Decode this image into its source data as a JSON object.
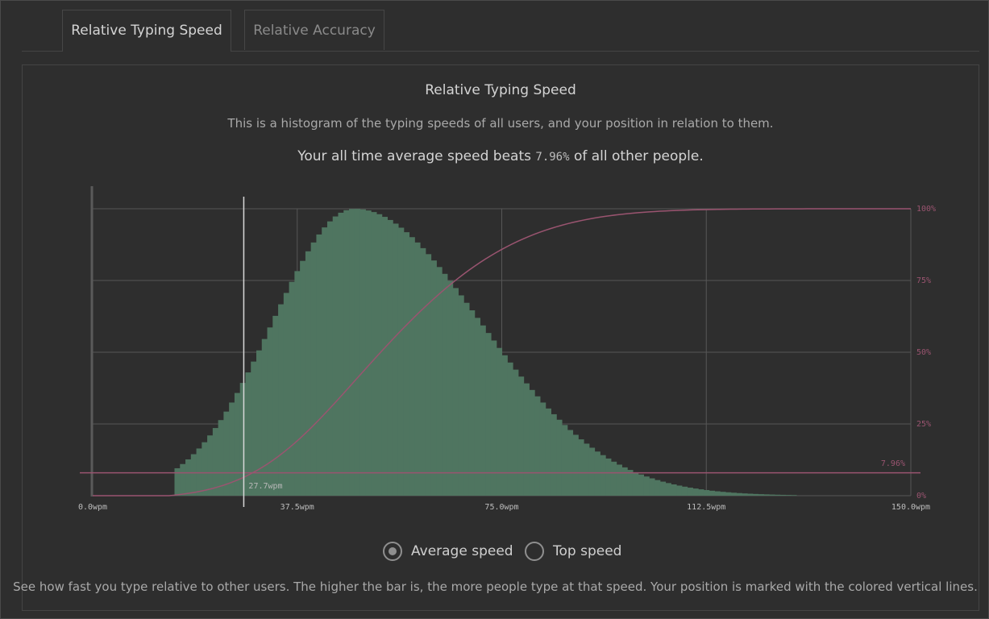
{
  "tabs": [
    {
      "label": "Relative Typing Speed",
      "active": true
    },
    {
      "label": "Relative Accuracy",
      "active": false
    }
  ],
  "panel": {
    "title": "Relative Typing Speed",
    "subtitle": "This is a histogram of the typing speeds of all users, and your position in relation to them.",
    "stat_prefix": "Your all time average speed beats",
    "stat_value": "7.96%",
    "stat_suffix": "of all other people."
  },
  "chart_data": {
    "type": "bar",
    "x_ticks": [
      "0.0wpm",
      "37.5wpm",
      "75.0wpm",
      "112.5wpm",
      "150.0wpm"
    ],
    "y_right_ticks": [
      "0%",
      "25%",
      "50%",
      "75%",
      "100%"
    ],
    "xlim": [
      0,
      150
    ],
    "ylim_right": [
      0,
      100
    ],
    "histogram": {
      "description_values": "relative frequency of users per speed bucket",
      "peak_wpm": 48,
      "bucket_width_wpm": 1
    },
    "cumulative_line": {
      "color": "#9a5470"
    },
    "user_speed_wpm": 27.7,
    "user_speed_label": "27.7wpm",
    "user_percentile": 7.96,
    "user_percentile_label": "7.96%",
    "colors": {
      "bars": "#4f7560",
      "cumulative": "#9a5470",
      "marker": "#d8d8d8",
      "grid": "#565656"
    }
  },
  "radios": [
    {
      "label": "Average speed",
      "checked": true
    },
    {
      "label": "Top speed",
      "checked": false
    }
  ],
  "footer": "See how fast you type relative to other users. The higher the bar is, the more people type at that speed. Your position is marked with the colored vertical lines."
}
